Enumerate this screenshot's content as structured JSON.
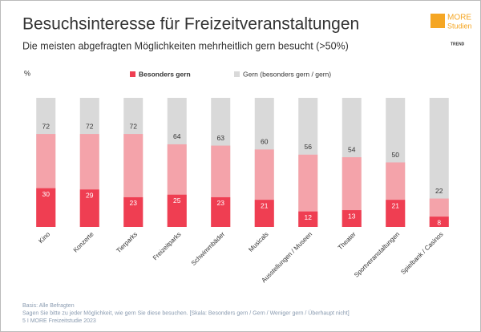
{
  "header": {
    "logo_title": "MORE",
    "logo_subtitle": "Studien",
    "badge": "TREND"
  },
  "chart_data": {
    "type": "overlap_bar",
    "title": "Besuchsinteresse für Freizeitveranstaltungen",
    "subtitle": "Die meisten abgefragten Möglichkeiten mehrheitlich gern besucht (>50%)",
    "y_label": "%",
    "categories": [
      "Kino",
      "Konzerte",
      "Tierparks",
      "Freizeitparks",
      "Schwimmbäder",
      "Musicals",
      "Ausstellungen / Museen",
      "Theater",
      "Sportveranstaltungen",
      "Spielbank / Casinos"
    ],
    "series": [
      {
        "name": "Gern (besonders gern / gern)",
        "color": "#f4a3aa",
        "legend_color": "#d9d9d9",
        "values": [
          72,
          72,
          72,
          64,
          63,
          60,
          56,
          54,
          50,
          22
        ]
      },
      {
        "name": "Besonders gern",
        "color": "#ef3e52",
        "values": [
          30,
          29,
          23,
          25,
          23,
          21,
          12,
          13,
          21,
          8
        ]
      }
    ],
    "background_color": "#d9d9d9",
    "ylim": [
      0,
      100
    ],
    "notes": [
      "Basis: Alle Befragten",
      "Sagen Sie bitte zu jeder Möglichkeit, wie gern Sie diese besuchen. [Skala: Besonders gern / Gern / Weniger gern / Überhaupt nicht]",
      "5 I MORE Freizeitstudie 2023"
    ]
  }
}
